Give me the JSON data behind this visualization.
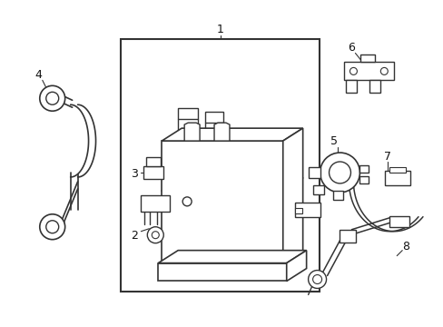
{
  "bg_color": "#ffffff",
  "line_color": "#333333",
  "lw": 1.0,
  "fig_width": 4.89,
  "fig_height": 3.6
}
